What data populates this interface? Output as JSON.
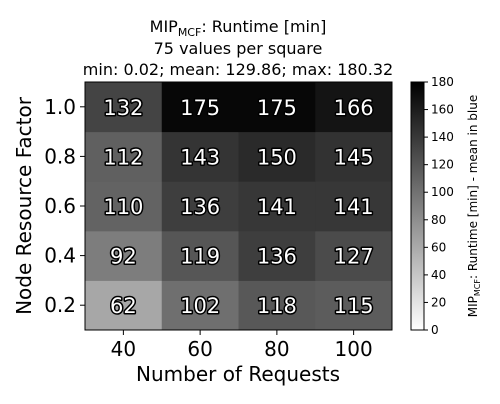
{
  "chart_data": {
    "type": "heatmap",
    "title_lines": {
      "line1_prefix": "MIP",
      "line1_sub": "MCF",
      "line1_suffix": ": Runtime [min]",
      "line2": "75 values per square",
      "line3": "min: 0.02; mean: 129.86; max: 180.32"
    },
    "xlabel": "Number of Requests",
    "ylabel": "Node Resource Factor",
    "x_categories": [
      "40",
      "60",
      "80",
      "100"
    ],
    "y_categories": [
      "0.2",
      "0.4",
      "0.6",
      "0.8",
      "1.0"
    ],
    "values": [
      [
        62,
        102,
        118,
        115
      ],
      [
        92,
        119,
        136,
        127
      ],
      [
        110,
        136,
        141,
        141
      ],
      [
        112,
        143,
        150,
        145
      ],
      [
        132,
        175,
        175,
        166
      ]
    ],
    "value_labels": [
      [
        "62",
        "102",
        "118",
        "115"
      ],
      [
        "92",
        "119",
        "136",
        "127"
      ],
      [
        "110",
        "136",
        "141",
        "141"
      ],
      [
        "112",
        "143",
        "150",
        "145"
      ],
      [
        "132",
        "175",
        "175",
        "166"
      ]
    ],
    "colorbar": {
      "range": [
        0,
        180
      ],
      "ticks": [
        "0",
        "20",
        "40",
        "60",
        "80",
        "100",
        "120",
        "140",
        "160",
        "180"
      ],
      "label_prefix": "MIP",
      "label_sub": "MCF",
      "label_suffix": ": Runtime [min] - mean in blue",
      "colormap": "gray_r"
    },
    "label_style": {
      "fill": "#ffffff",
      "stroke": "#000000"
    }
  }
}
